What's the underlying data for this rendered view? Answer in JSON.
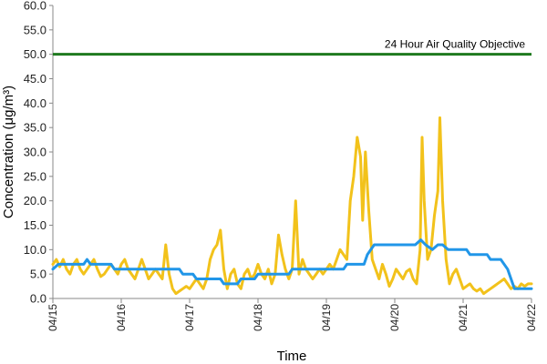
{
  "chart_data": {
    "type": "line",
    "xlabel": "Time",
    "ylabel": "Concentration (μg/m³)",
    "ylim": [
      0,
      60
    ],
    "yticks": [
      "0.0",
      "5.0",
      "10.0",
      "15.0",
      "20.0",
      "25.0",
      "30.0",
      "35.0",
      "40.0",
      "45.0",
      "50.0",
      "55.0",
      "60.0"
    ],
    "x_range_days": [
      0,
      7
    ],
    "xtick_labels": [
      "04/15",
      "04/16",
      "04/17",
      "04/18",
      "04/19",
      "04/20",
      "04/21",
      "04/22"
    ],
    "grid": false,
    "legend": "none",
    "reference_lines": [
      {
        "value": 50,
        "label": "24 Hour Air Quality Objective",
        "color": "#1f7a1f"
      }
    ],
    "series": [
      {
        "color": "#f2c21b",
        "points": [
          [
            0.0,
            7
          ],
          [
            0.05,
            8
          ],
          [
            0.1,
            6.5
          ],
          [
            0.15,
            8
          ],
          [
            0.2,
            6
          ],
          [
            0.25,
            5
          ],
          [
            0.3,
            7
          ],
          [
            0.35,
            8
          ],
          [
            0.4,
            6
          ],
          [
            0.45,
            5
          ],
          [
            0.5,
            6
          ],
          [
            0.55,
            7
          ],
          [
            0.6,
            8
          ],
          [
            0.65,
            6
          ],
          [
            0.7,
            4.5
          ],
          [
            0.75,
            5
          ],
          [
            0.8,
            6
          ],
          [
            0.85,
            7
          ],
          [
            0.9,
            6
          ],
          [
            0.95,
            5
          ],
          [
            1.0,
            7
          ],
          [
            1.05,
            8
          ],
          [
            1.1,
            6
          ],
          [
            1.15,
            5
          ],
          [
            1.2,
            4
          ],
          [
            1.25,
            6
          ],
          [
            1.3,
            8
          ],
          [
            1.35,
            6
          ],
          [
            1.4,
            4
          ],
          [
            1.45,
            5
          ],
          [
            1.5,
            6
          ],
          [
            1.55,
            5
          ],
          [
            1.6,
            4
          ],
          [
            1.65,
            11
          ],
          [
            1.7,
            5
          ],
          [
            1.75,
            2
          ],
          [
            1.8,
            1
          ],
          [
            1.85,
            1.5
          ],
          [
            1.9,
            2
          ],
          [
            1.95,
            2.5
          ],
          [
            2.0,
            2
          ],
          [
            2.05,
            3
          ],
          [
            2.1,
            4
          ],
          [
            2.15,
            3
          ],
          [
            2.2,
            2
          ],
          [
            2.25,
            4
          ],
          [
            2.3,
            8
          ],
          [
            2.35,
            10
          ],
          [
            2.4,
            11
          ],
          [
            2.45,
            14
          ],
          [
            2.5,
            6
          ],
          [
            2.55,
            2
          ],
          [
            2.6,
            5
          ],
          [
            2.65,
            6
          ],
          [
            2.7,
            3
          ],
          [
            2.75,
            2
          ],
          [
            2.8,
            5
          ],
          [
            2.85,
            6
          ],
          [
            2.9,
            4
          ],
          [
            2.95,
            5
          ],
          [
            3.0,
            7
          ],
          [
            3.05,
            5
          ],
          [
            3.1,
            4
          ],
          [
            3.15,
            6
          ],
          [
            3.2,
            3
          ],
          [
            3.25,
            5
          ],
          [
            3.3,
            13
          ],
          [
            3.35,
            9
          ],
          [
            3.4,
            6
          ],
          [
            3.45,
            4
          ],
          [
            3.5,
            6
          ],
          [
            3.55,
            20
          ],
          [
            3.6,
            5
          ],
          [
            3.65,
            8
          ],
          [
            3.7,
            6
          ],
          [
            3.75,
            5
          ],
          [
            3.8,
            4
          ],
          [
            3.85,
            5
          ],
          [
            3.9,
            6
          ],
          [
            3.95,
            5
          ],
          [
            4.0,
            6
          ],
          [
            4.05,
            7
          ],
          [
            4.1,
            6
          ],
          [
            4.15,
            8
          ],
          [
            4.2,
            10
          ],
          [
            4.25,
            9
          ],
          [
            4.3,
            8
          ],
          [
            4.35,
            20
          ],
          [
            4.4,
            25
          ],
          [
            4.45,
            33
          ],
          [
            4.5,
            29
          ],
          [
            4.53,
            16
          ],
          [
            4.57,
            30
          ],
          [
            4.62,
            18
          ],
          [
            4.67,
            8
          ],
          [
            4.72,
            6
          ],
          [
            4.77,
            4
          ],
          [
            4.82,
            7
          ],
          [
            4.87,
            5
          ],
          [
            4.92,
            2.5
          ],
          [
            4.97,
            4
          ],
          [
            5.02,
            6
          ],
          [
            5.07,
            5
          ],
          [
            5.12,
            4
          ],
          [
            5.17,
            5.5
          ],
          [
            5.22,
            6
          ],
          [
            5.27,
            4
          ],
          [
            5.32,
            3
          ],
          [
            5.37,
            10
          ],
          [
            5.4,
            33
          ],
          [
            5.43,
            20
          ],
          [
            5.48,
            8
          ],
          [
            5.53,
            10
          ],
          [
            5.58,
            17
          ],
          [
            5.63,
            22
          ],
          [
            5.66,
            37
          ],
          [
            5.7,
            20
          ],
          [
            5.75,
            8
          ],
          [
            5.8,
            3
          ],
          [
            5.85,
            5
          ],
          [
            5.9,
            6
          ],
          [
            5.95,
            4
          ],
          [
            6.0,
            2
          ],
          [
            6.05,
            2.5
          ],
          [
            6.1,
            3
          ],
          [
            6.15,
            2
          ],
          [
            6.2,
            1.5
          ],
          [
            6.25,
            2
          ],
          [
            6.3,
            1
          ],
          [
            6.35,
            1.5
          ],
          [
            6.4,
            2
          ],
          [
            6.45,
            2.5
          ],
          [
            6.5,
            3
          ],
          [
            6.55,
            3.5
          ],
          [
            6.6,
            4
          ],
          [
            6.65,
            3
          ],
          [
            6.7,
            2
          ],
          [
            6.75,
            2.5
          ],
          [
            6.8,
            2
          ],
          [
            6.85,
            3
          ],
          [
            6.9,
            2.5
          ],
          [
            6.95,
            3
          ],
          [
            7.0,
            3
          ]
        ]
      },
      {
        "color": "#2196e8",
        "points": [
          [
            0.0,
            6
          ],
          [
            0.08,
            7
          ],
          [
            0.45,
            7
          ],
          [
            0.5,
            8
          ],
          [
            0.55,
            7
          ],
          [
            0.85,
            7
          ],
          [
            0.9,
            6
          ],
          [
            1.85,
            6
          ],
          [
            1.9,
            5
          ],
          [
            2.05,
            5
          ],
          [
            2.1,
            4
          ],
          [
            2.45,
            4
          ],
          [
            2.5,
            3
          ],
          [
            2.7,
            3
          ],
          [
            2.75,
            4
          ],
          [
            2.95,
            4
          ],
          [
            3.0,
            5
          ],
          [
            3.45,
            5
          ],
          [
            3.5,
            6
          ],
          [
            4.25,
            6
          ],
          [
            4.3,
            7
          ],
          [
            4.55,
            7
          ],
          [
            4.6,
            9
          ],
          [
            4.65,
            10
          ],
          [
            4.7,
            11
          ],
          [
            5.3,
            11
          ],
          [
            5.38,
            12
          ],
          [
            5.45,
            11
          ],
          [
            5.55,
            10
          ],
          [
            5.63,
            11
          ],
          [
            5.7,
            11
          ],
          [
            5.78,
            10
          ],
          [
            6.05,
            10
          ],
          [
            6.1,
            9
          ],
          [
            6.35,
            9
          ],
          [
            6.4,
            8
          ],
          [
            6.55,
            8
          ],
          [
            6.65,
            6
          ],
          [
            6.75,
            2
          ],
          [
            7.0,
            2
          ]
        ]
      }
    ]
  }
}
